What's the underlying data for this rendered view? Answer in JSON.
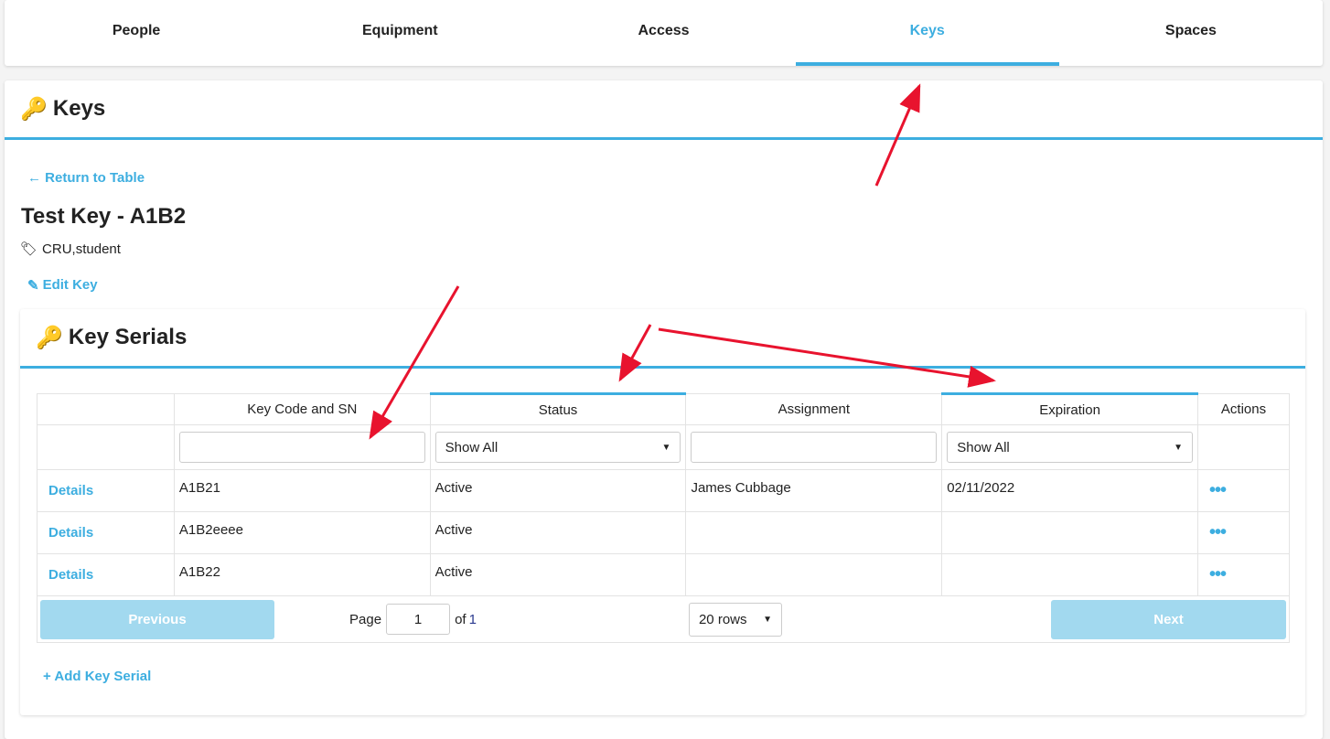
{
  "nav": {
    "tabs": [
      {
        "label": "People"
      },
      {
        "label": "Equipment"
      },
      {
        "label": "Access"
      },
      {
        "label": "Keys",
        "active": true
      },
      {
        "label": "Spaces"
      }
    ]
  },
  "page": {
    "heading": "Keys",
    "return_link": "← Return to Table",
    "title": "Test Key - A1B2",
    "tags": "CRU,student",
    "edit_link": "Edit Key"
  },
  "serials": {
    "heading": "Key Serials",
    "columns": [
      "",
      "Key Code and SN",
      "Status",
      "Assignment",
      "Expiration",
      "Actions"
    ],
    "filters": {
      "key_code": "",
      "status": "Show All",
      "assignment": "",
      "expiration": "Show All"
    },
    "rows": [
      {
        "link": "Details",
        "code": "A1B21",
        "status": "Active",
        "assignment": "James Cubbage",
        "expiration": "02/11/2022"
      },
      {
        "link": "Details",
        "code": "A1B2eeee",
        "status": "Active",
        "assignment": "",
        "expiration": ""
      },
      {
        "link": "Details",
        "code": "A1B22",
        "status": "Active",
        "assignment": "",
        "expiration": ""
      }
    ],
    "pagination": {
      "previous": "Previous",
      "page_label": "Page",
      "page": "1",
      "of_label": "of",
      "total": "1",
      "rows": "20 rows",
      "next": "Next"
    },
    "add_link": "+ Add Key Serial"
  },
  "colors": {
    "accent": "#3daee0",
    "annotation": "#e8132e"
  }
}
